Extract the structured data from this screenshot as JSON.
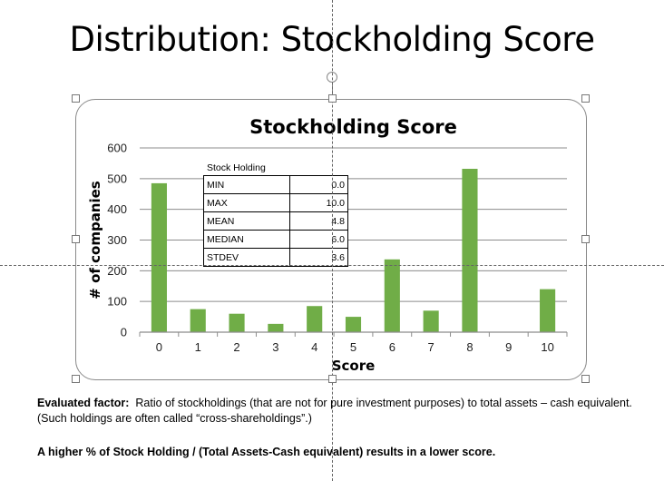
{
  "slide": {
    "title": "Distribution: Stockholding Score",
    "note_label": "Evaluated factor:",
    "note_text": "Ratio of stockholdings (that are not for pure investment purposes) to total assets – cash equivalent. (Such holdings are often called “cross-shareholdings”.)",
    "note_bold": "A higher % of Stock Holding / (Total Assets-Cash equivalent) results in a lower score."
  },
  "chart_data": {
    "type": "bar",
    "title": "Stockholding Score",
    "xlabel": "Score",
    "ylabel": "# of companies",
    "categories": [
      "0",
      "1",
      "2",
      "3",
      "4",
      "5",
      "6",
      "7",
      "8",
      "9",
      "10"
    ],
    "values": [
      485,
      75,
      60,
      27,
      85,
      50,
      237,
      70,
      532,
      0,
      140
    ],
    "ylim": [
      0,
      600
    ],
    "yticks": [
      "0",
      "100",
      "200",
      "300",
      "400",
      "500",
      "600"
    ],
    "grid": true,
    "legend": "none",
    "bar_color": "#70AD47"
  },
  "stats_table": {
    "title": "Stock Holding",
    "rows": [
      {
        "label": "MIN",
        "value": "0.0"
      },
      {
        "label": "MAX",
        "value": "10.0"
      },
      {
        "label": "MEAN",
        "value": "4.8"
      },
      {
        "label": "MEDIAN",
        "value": "6.0"
      },
      {
        "label": "STDEV",
        "value": "3.6"
      }
    ]
  }
}
